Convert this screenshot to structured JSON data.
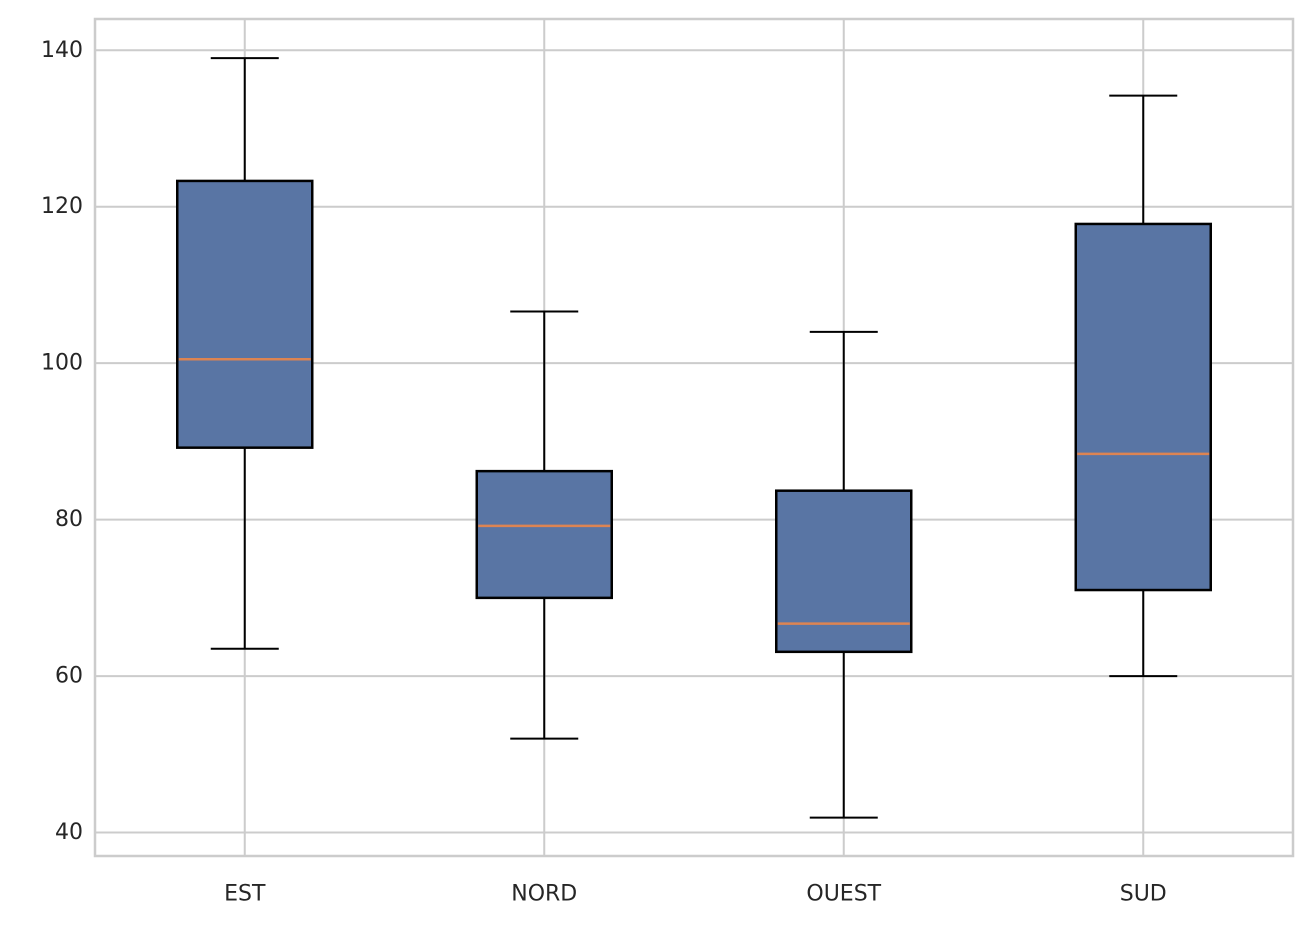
{
  "chart_data": {
    "type": "boxplot",
    "title": "",
    "xlabel": "",
    "ylabel": "",
    "categories": [
      "EST",
      "NORD",
      "OUEST",
      "SUD"
    ],
    "boxes": [
      {
        "category": "EST",
        "whisker_low": 63.5,
        "q1": 89.2,
        "median": 100.5,
        "q3": 123.3,
        "whisker_high": 139.0
      },
      {
        "category": "NORD",
        "whisker_low": 52.0,
        "q1": 70.0,
        "median": 79.2,
        "q3": 86.2,
        "whisker_high": 106.6
      },
      {
        "category": "OUEST",
        "whisker_low": 41.9,
        "q1": 63.1,
        "median": 66.7,
        "q3": 83.7,
        "whisker_high": 104.0
      },
      {
        "category": "SUD",
        "whisker_low": 60.0,
        "q1": 71.0,
        "median": 88.4,
        "q3": 117.8,
        "whisker_high": 134.2
      }
    ],
    "y_ticks": [
      40,
      60,
      80,
      100,
      120,
      140
    ],
    "y_tick_labels": [
      "40",
      "60",
      "80",
      "100",
      "120",
      "140"
    ],
    "ylim": [
      37,
      144
    ],
    "grid": true,
    "colors": {
      "box_fill": "#5975a4",
      "box_edge": "#000000",
      "median": "#dd8452",
      "whisker": "#000000",
      "grid": "#cccccc",
      "axes_edge": "#cccccc",
      "tick_text": "#262626"
    }
  }
}
